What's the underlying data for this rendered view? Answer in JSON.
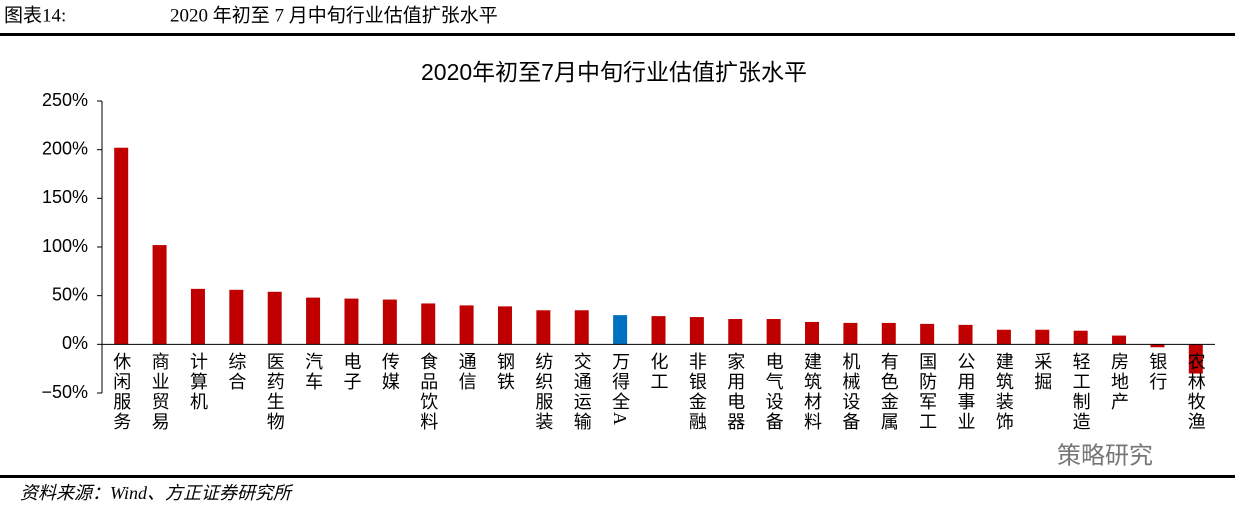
{
  "header": {
    "label": "图表14:",
    "title": "2020 年初至 7 月中旬行业估值扩张水平"
  },
  "chart_data": {
    "type": "bar",
    "title": "2020年初至7月中旬行业估值扩张水平",
    "categories": [
      "休闲服务",
      "商业贸易",
      "计算机",
      "综合",
      "医药生物",
      "汽车",
      "电子",
      "传媒",
      "食品饮料",
      "通信",
      "钢铁",
      "纺织服装",
      "交通运输",
      "万得全A",
      "化工",
      "非银金融",
      "家用电器",
      "电气设备",
      "建筑材料",
      "机械设备",
      "有色金属",
      "国防军工",
      "公用事业",
      "建筑装饰",
      "采掘",
      "轻工制造",
      "房地产",
      "银行",
      "农林牧渔"
    ],
    "values": [
      202,
      102,
      57,
      56,
      54,
      48,
      47,
      46,
      42,
      40,
      39,
      35,
      35,
      30,
      29,
      28,
      26,
      26,
      23,
      22,
      22,
      21,
      20,
      15,
      15,
      14,
      9,
      -3,
      -30
    ],
    "colors": [
      "#c00000",
      "#c00000",
      "#c00000",
      "#c00000",
      "#c00000",
      "#c00000",
      "#c00000",
      "#c00000",
      "#c00000",
      "#c00000",
      "#c00000",
      "#c00000",
      "#c00000",
      "#0070c0",
      "#c00000",
      "#c00000",
      "#c00000",
      "#c00000",
      "#c00000",
      "#c00000",
      "#c00000",
      "#c00000",
      "#c00000",
      "#c00000",
      "#c00000",
      "#c00000",
      "#c00000",
      "#c00000",
      "#c00000"
    ],
    "ylim": [
      -50,
      250
    ],
    "yticks": [
      {
        "value": -50,
        "label": "−50%"
      },
      {
        "value": 0,
        "label": "0%"
      },
      {
        "value": 50,
        "label": "50%"
      },
      {
        "value": 100,
        "label": "100%"
      },
      {
        "value": 150,
        "label": "150%"
      },
      {
        "value": 200,
        "label": "200%"
      },
      {
        "value": 250,
        "label": "250%"
      }
    ],
    "grid": false
  },
  "source": "资料来源：Wind、方正证券研究所",
  "watermark": "策略研究"
}
